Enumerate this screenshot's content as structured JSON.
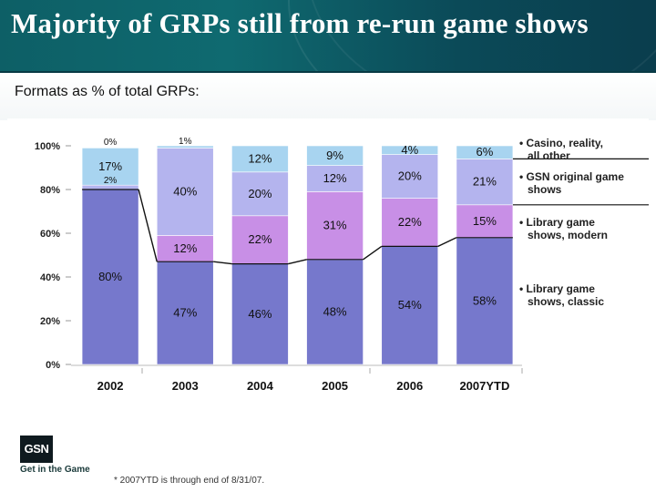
{
  "slide": {
    "title": "Majority of GRPs still from re-run game shows",
    "subtitle": "Formats as % of total GRPs:",
    "logo_text": "GSN",
    "logo_tagline": "Get in the Game",
    "footnote": "* 2007YTD is through end of 8/31/07."
  },
  "chart_data": {
    "type": "bar",
    "stacked": true,
    "categories": [
      "2002",
      "2003",
      "2004",
      "2005",
      "2006",
      "2007YTD"
    ],
    "ylim": [
      0,
      100
    ],
    "yticks": [
      "0%",
      "20%",
      "40%",
      "60%",
      "80%",
      "100%"
    ],
    "grid": false,
    "legend_placement": "right",
    "series": [
      {
        "name": "• Library game shows, classic",
        "legend_lines": [
          "• Library game",
          "shows, classic"
        ],
        "values": [
          80,
          47,
          46,
          48,
          54,
          58
        ],
        "labels": [
          "80%",
          "47%",
          "46%",
          "48%",
          "54%",
          "58%"
        ],
        "color": "#7678cc"
      },
      {
        "name": "• Library game shows, modern",
        "legend_lines": [
          "• Library game",
          "shows, modern"
        ],
        "values": [
          0,
          12,
          22,
          31,
          22,
          15
        ],
        "labels": [
          "",
          "12%",
          "22%",
          "31%",
          "22%",
          "15%"
        ],
        "color": "#c88fe6"
      },
      {
        "name": "• GSN original game shows",
        "legend_lines": [
          "• GSN original game",
          "shows"
        ],
        "values": [
          2,
          40,
          20,
          12,
          20,
          21
        ],
        "labels": [
          "2%",
          "40%",
          "20%",
          "12%",
          "20%",
          "21%"
        ],
        "color": "#b4b4ee"
      },
      {
        "name": "• Casino, reality, all other",
        "legend_lines": [
          "• Casino, reality,",
          "all other"
        ],
        "values": [
          17,
          1,
          12,
          9,
          4,
          6
        ],
        "labels": [
          "17%",
          "1%",
          "12%",
          "9%",
          "4%",
          "6%"
        ],
        "color": "#a8d4f0"
      },
      {
        "name": "",
        "values": [
          0,
          0,
          0,
          0,
          0,
          0
        ],
        "labels": [
          "0%",
          "",
          "",
          "",
          "",
          ""
        ],
        "color": "#ffffff"
      }
    ]
  }
}
